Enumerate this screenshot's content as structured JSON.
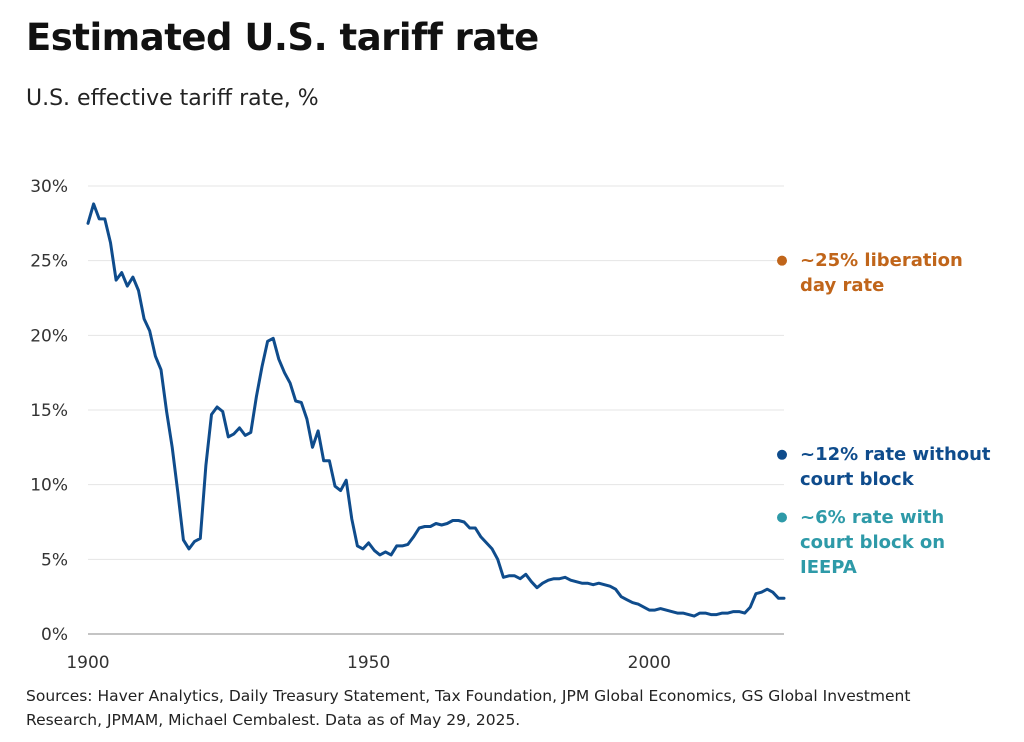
{
  "chart_data": {
    "type": "line",
    "title": "Estimated U.S. tariff rate",
    "subtitle": "U.S. effective tariff rate, %",
    "xlabel": "",
    "ylabel": "",
    "xlim": [
      1900,
      2024
    ],
    "ylim": [
      0,
      30
    ],
    "x_ticks": [
      1900,
      1950,
      2000
    ],
    "x_tick_labels": [
      "1900",
      "1950",
      "2000"
    ],
    "y_ticks": [
      0,
      5,
      10,
      15,
      20,
      25,
      30
    ],
    "y_tick_labels": [
      "0%",
      "5%",
      "10%",
      "15%",
      "20%",
      "25%",
      "30%"
    ],
    "grid": "horizontal",
    "line_color": "#0f4c8c",
    "series": [
      {
        "values": [
          [
            1900,
            27.5
          ],
          [
            1901,
            28.8
          ],
          [
            1902,
            27.8
          ],
          [
            1903,
            27.8
          ],
          [
            1904,
            26.2
          ],
          [
            1905,
            23.7
          ],
          [
            1906,
            24.2
          ],
          [
            1907,
            23.3
          ],
          [
            1908,
            23.9
          ],
          [
            1909,
            23.0
          ],
          [
            1910,
            21.1
          ],
          [
            1911,
            20.3
          ],
          [
            1912,
            18.6
          ],
          [
            1913,
            17.7
          ],
          [
            1914,
            14.9
          ],
          [
            1915,
            12.5
          ],
          [
            1916,
            9.5
          ],
          [
            1917,
            6.3
          ],
          [
            1918,
            5.7
          ],
          [
            1919,
            6.2
          ],
          [
            1920,
            6.4
          ],
          [
            1921,
            11.3
          ],
          [
            1922,
            14.7
          ],
          [
            1923,
            15.2
          ],
          [
            1924,
            14.9
          ],
          [
            1925,
            13.2
          ],
          [
            1926,
            13.4
          ],
          [
            1927,
            13.8
          ],
          [
            1928,
            13.3
          ],
          [
            1929,
            13.5
          ],
          [
            1930,
            15.9
          ],
          [
            1931,
            17.9
          ],
          [
            1932,
            19.6
          ],
          [
            1933,
            19.8
          ],
          [
            1934,
            18.4
          ],
          [
            1935,
            17.5
          ],
          [
            1936,
            16.8
          ],
          [
            1937,
            15.6
          ],
          [
            1938,
            15.5
          ],
          [
            1939,
            14.4
          ],
          [
            1940,
            12.5
          ],
          [
            1941,
            13.6
          ],
          [
            1942,
            11.6
          ],
          [
            1943,
            11.6
          ],
          [
            1944,
            9.9
          ],
          [
            1945,
            9.6
          ],
          [
            1946,
            10.3
          ],
          [
            1947,
            7.7
          ],
          [
            1948,
            5.9
          ],
          [
            1949,
            5.7
          ],
          [
            1950,
            6.1
          ],
          [
            1951,
            5.6
          ],
          [
            1952,
            5.3
          ],
          [
            1953,
            5.5
          ],
          [
            1954,
            5.3
          ],
          [
            1955,
            5.9
          ],
          [
            1956,
            5.9
          ],
          [
            1957,
            6.0
          ],
          [
            1958,
            6.5
          ],
          [
            1959,
            7.1
          ],
          [
            1960,
            7.2
          ],
          [
            1961,
            7.2
          ],
          [
            1962,
            7.4
          ],
          [
            1963,
            7.3
          ],
          [
            1964,
            7.4
          ],
          [
            1965,
            7.6
          ],
          [
            1966,
            7.6
          ],
          [
            1967,
            7.5
          ],
          [
            1968,
            7.1
          ],
          [
            1969,
            7.1
          ],
          [
            1970,
            6.5
          ],
          [
            1971,
            6.1
          ],
          [
            1972,
            5.7
          ],
          [
            1973,
            5.0
          ],
          [
            1974,
            3.8
          ],
          [
            1975,
            3.9
          ],
          [
            1976,
            3.9
          ],
          [
            1977,
            3.7
          ],
          [
            1978,
            4.0
          ],
          [
            1979,
            3.5
          ],
          [
            1980,
            3.1
          ],
          [
            1981,
            3.4
          ],
          [
            1982,
            3.6
          ],
          [
            1983,
            3.7
          ],
          [
            1984,
            3.7
          ],
          [
            1985,
            3.8
          ],
          [
            1986,
            3.6
          ],
          [
            1987,
            3.5
          ],
          [
            1988,
            3.4
          ],
          [
            1989,
            3.4
          ],
          [
            1990,
            3.3
          ],
          [
            1991,
            3.4
          ],
          [
            1992,
            3.3
          ],
          [
            1993,
            3.2
          ],
          [
            1994,
            3.0
          ],
          [
            1995,
            2.5
          ],
          [
            1996,
            2.3
          ],
          [
            1997,
            2.1
          ],
          [
            1998,
            2.0
          ],
          [
            1999,
            1.8
          ],
          [
            2000,
            1.6
          ],
          [
            2001,
            1.6
          ],
          [
            2002,
            1.7
          ],
          [
            2003,
            1.6
          ],
          [
            2004,
            1.5
          ],
          [
            2005,
            1.4
          ],
          [
            2006,
            1.4
          ],
          [
            2007,
            1.3
          ],
          [
            2008,
            1.2
          ],
          [
            2009,
            1.4
          ],
          [
            2010,
            1.4
          ],
          [
            2011,
            1.3
          ],
          [
            2012,
            1.3
          ],
          [
            2013,
            1.4
          ],
          [
            2014,
            1.4
          ],
          [
            2015,
            1.5
          ],
          [
            2016,
            1.5
          ],
          [
            2017,
            1.4
          ],
          [
            2018,
            1.8
          ],
          [
            2019,
            2.7
          ],
          [
            2020,
            2.8
          ],
          [
            2021,
            3.0
          ],
          [
            2022,
            2.8
          ],
          [
            2023,
            2.4
          ],
          [
            2024,
            2.4
          ]
        ]
      }
    ],
    "annotations": [
      {
        "label": "~25% liberation day rate",
        "y": 25,
        "color": "#c0651a"
      },
      {
        "label": "~12% rate without court block",
        "y": 12,
        "color": "#0f4c8c"
      },
      {
        "label": "~6% rate with court block on IEEPA",
        "y": 7.8,
        "color": "#2e9aa8"
      }
    ],
    "sources": "Sources: Haver Analytics, Daily Treasury Statement, Tax Foundation, JPM Global Economics, GS Global Investment Research, JPMAM, Michael Cembalest. Data as of May 29, 2025."
  }
}
